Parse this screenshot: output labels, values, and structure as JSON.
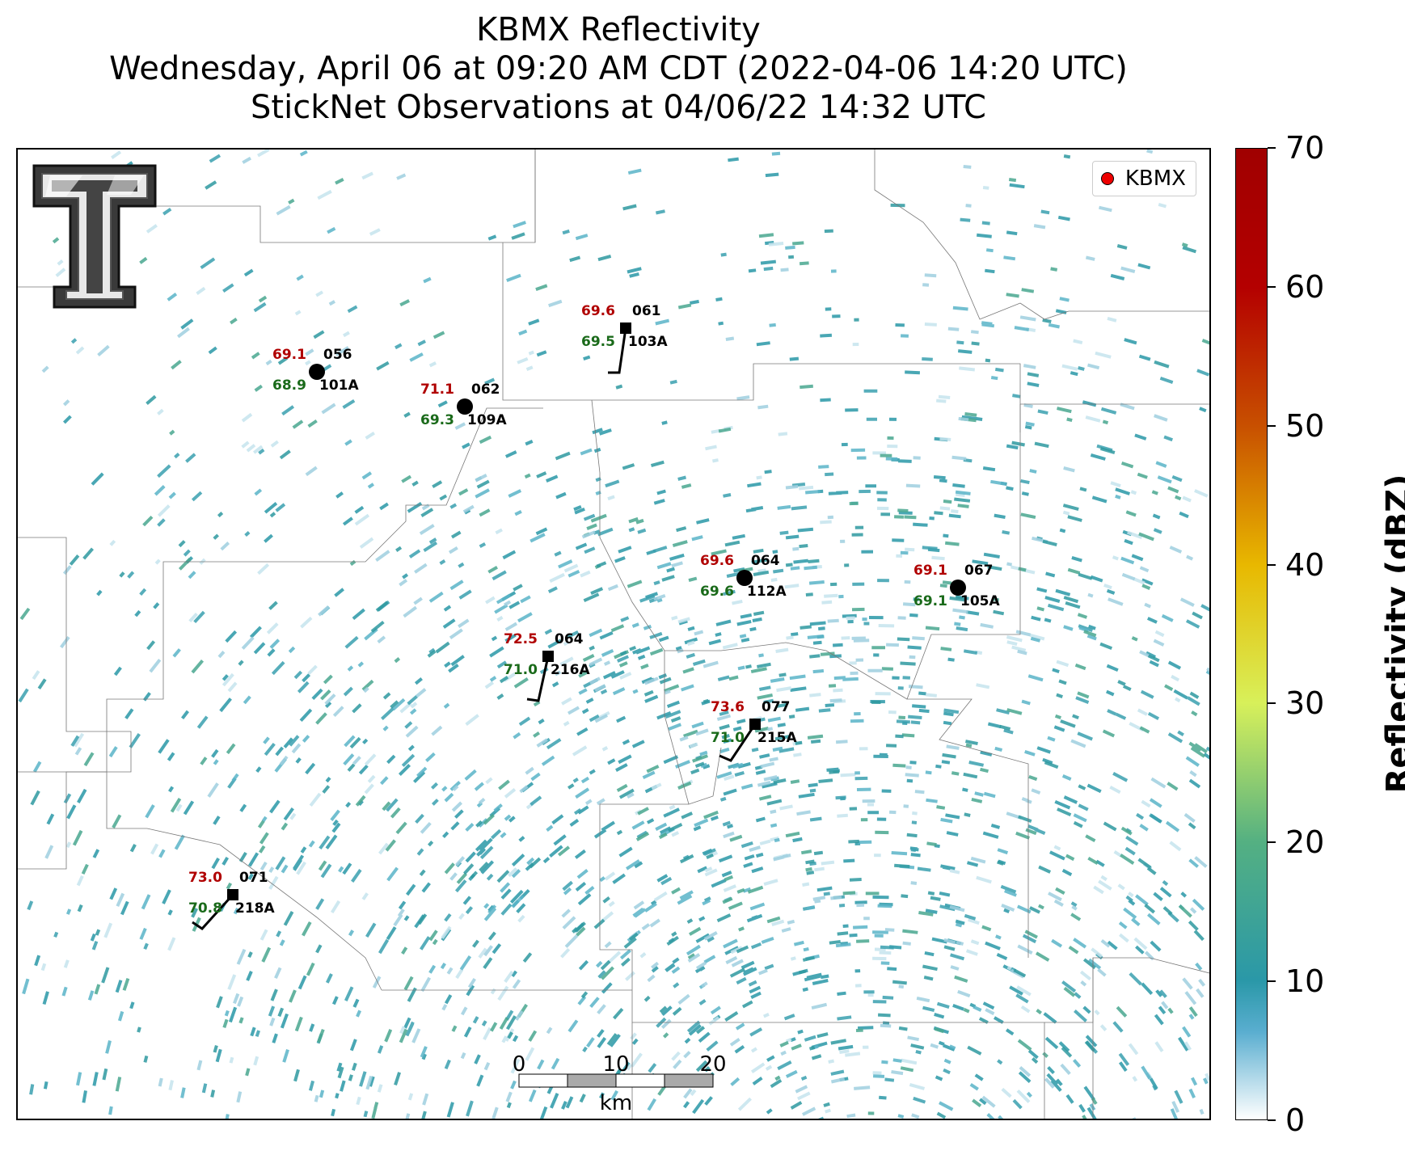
{
  "title": {
    "line1": "KBMX Reflectivity",
    "line2": "Wednesday, April 06 at 09:20 AM CDT (2022-04-06 14:20 UTC)",
    "line3": "StickNet Observations at 04/06/22 14:32 UTC"
  },
  "legend": {
    "label": "KBMX",
    "marker_color": "#e00000"
  },
  "colorbar": {
    "label": "Reflectivity (dBZ)",
    "ticks": [
      "0",
      "10",
      "20",
      "30",
      "40",
      "50",
      "60",
      "70"
    ],
    "range": [
      0,
      70
    ],
    "colors": [
      "#ffffff",
      "#2a98a8",
      "#54b082",
      "#d8f05a",
      "#e8b800",
      "#c85000",
      "#b40000",
      "#a00000"
    ]
  },
  "scalebar": {
    "ticks": [
      "0",
      "10",
      "20"
    ],
    "unit": "km"
  },
  "stations": [
    {
      "id": "101A",
      "temp": "69.1",
      "dew": "68.9",
      "wind": "056",
      "marker": "circle"
    },
    {
      "id": "109A",
      "temp": "71.1",
      "dew": "69.3",
      "wind": "062",
      "marker": "circle"
    },
    {
      "id": "103A",
      "temp": "69.6",
      "dew": "69.5",
      "wind": "061",
      "marker": "square"
    },
    {
      "id": "112A",
      "temp": "69.6",
      "dew": "69.6",
      "wind": "064",
      "marker": "circle"
    },
    {
      "id": "105A",
      "temp": "69.1",
      "dew": "69.1",
      "wind": "067",
      "marker": "circle"
    },
    {
      "id": "216A",
      "temp": "72.5",
      "dew": "71.0",
      "wind": "064",
      "marker": "square"
    },
    {
      "id": "215A",
      "temp": "73.6",
      "dew": "71.0",
      "wind": "077",
      "marker": "square"
    },
    {
      "id": "218A",
      "temp": "73.0",
      "dew": "70.8",
      "wind": "071",
      "marker": "square"
    }
  ],
  "text_colors": {
    "temp": "#b00000",
    "dew": "#1a6a1a",
    "label": "#000000"
  },
  "logo": {
    "name": "texas-tech-double-t-logo"
  }
}
